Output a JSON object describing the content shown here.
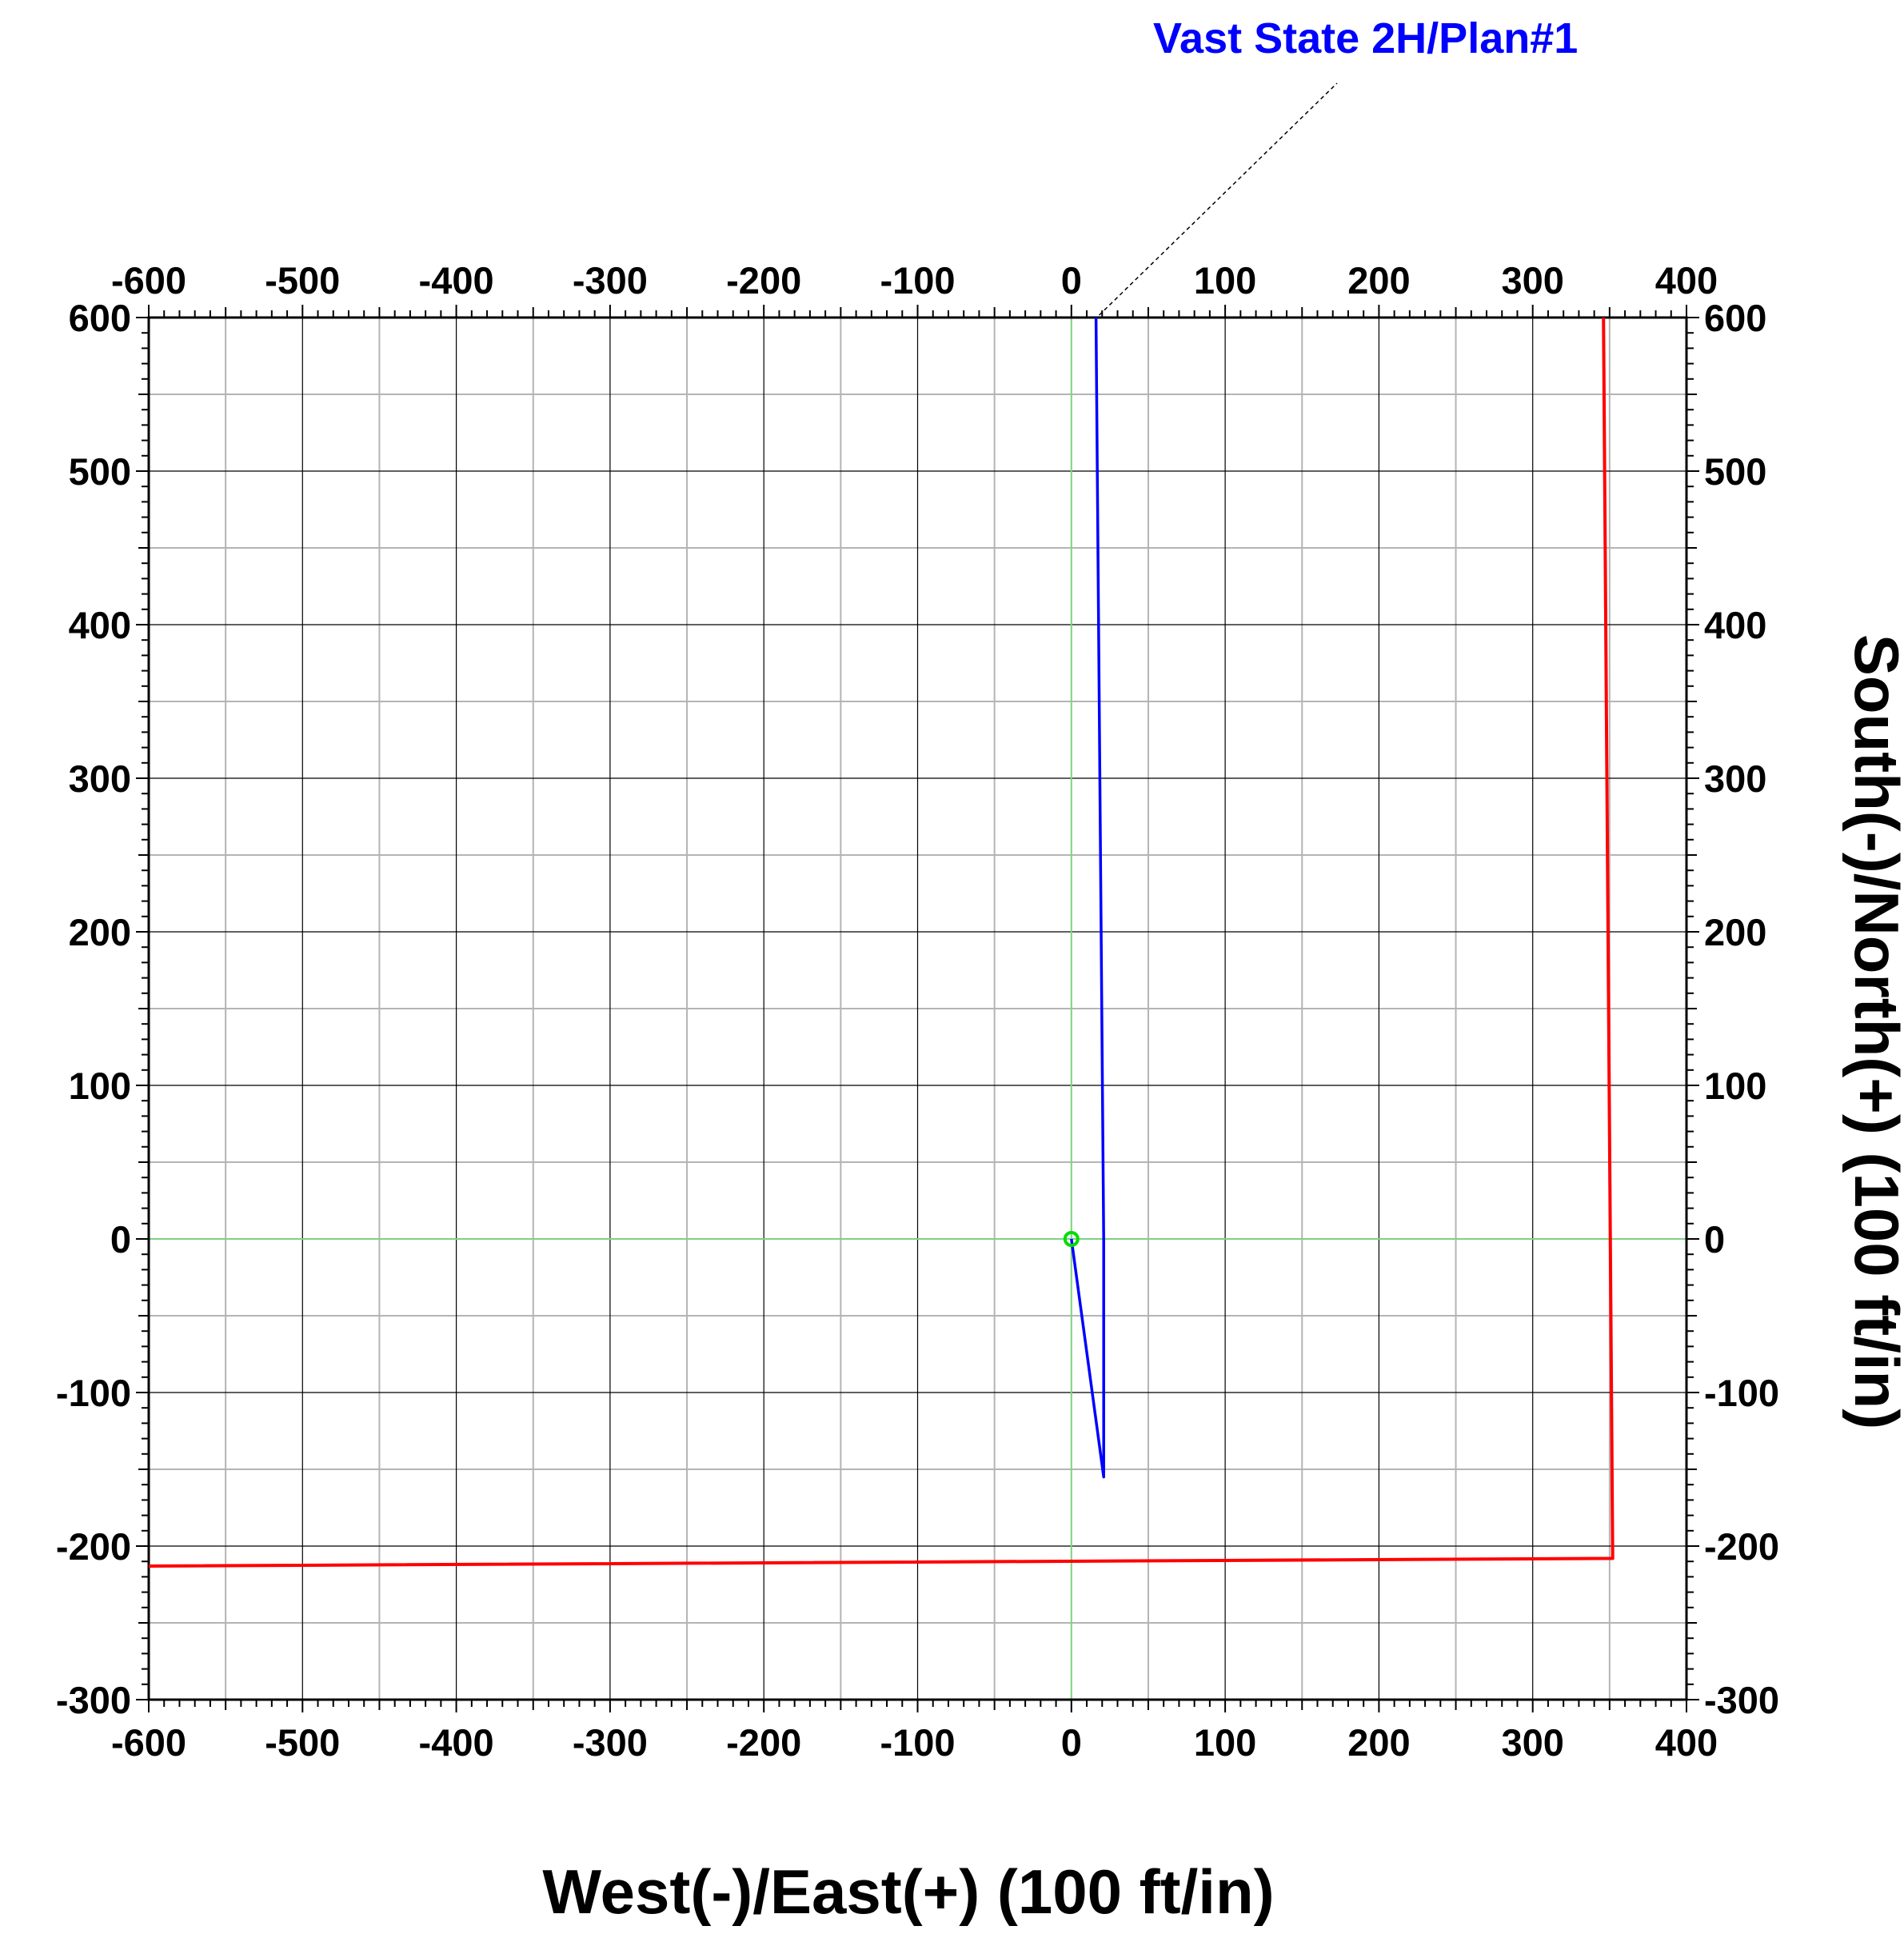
{
  "chart_data": {
    "type": "line",
    "xlabel": "West(-)/East(+) (100 ft/in)",
    "ylabel": "South(-)/North(+) (100 ft/in)",
    "xlim": [
      -600,
      400
    ],
    "ylim": [
      -300,
      600
    ],
    "x_ticks": [
      -600,
      -500,
      -400,
      -300,
      -200,
      -100,
      0,
      100,
      200,
      300,
      400
    ],
    "y_ticks": [
      -300,
      -200,
      -100,
      0,
      100,
      200,
      300,
      400,
      500,
      600
    ],
    "x_tick_labels": [
      "-600",
      "-500",
      "-400",
      "-300",
      "-200",
      "-100",
      "0",
      "100",
      "200",
      "300",
      "400"
    ],
    "y_tick_labels": [
      "-300",
      "-200",
      "-100",
      "0",
      "100",
      "200",
      "300",
      "400",
      "500",
      "600"
    ],
    "grid": true,
    "grid_colors": {
      "major": "#000000",
      "minor": "#b4b4b4",
      "origin": "#7fd17f"
    },
    "series": [
      {
        "name": "Vast State 2H/Plan#1",
        "color": "#0000ff",
        "x": [
          0,
          21,
          21,
          16
        ],
        "y": [
          0,
          -155,
          0,
          600
        ]
      },
      {
        "color": "#ff0000",
        "x": [
          -600,
          352,
          346
        ],
        "y": [
          -213,
          -208,
          600
        ]
      }
    ],
    "surface_location": {
      "x": 0,
      "y": 0,
      "color": "#00dd00"
    },
    "annotation": {
      "text": "Vast State 2H/Plan#1",
      "color": "#0000ff",
      "points_to": {
        "x": 16,
        "y": 600
      }
    }
  }
}
